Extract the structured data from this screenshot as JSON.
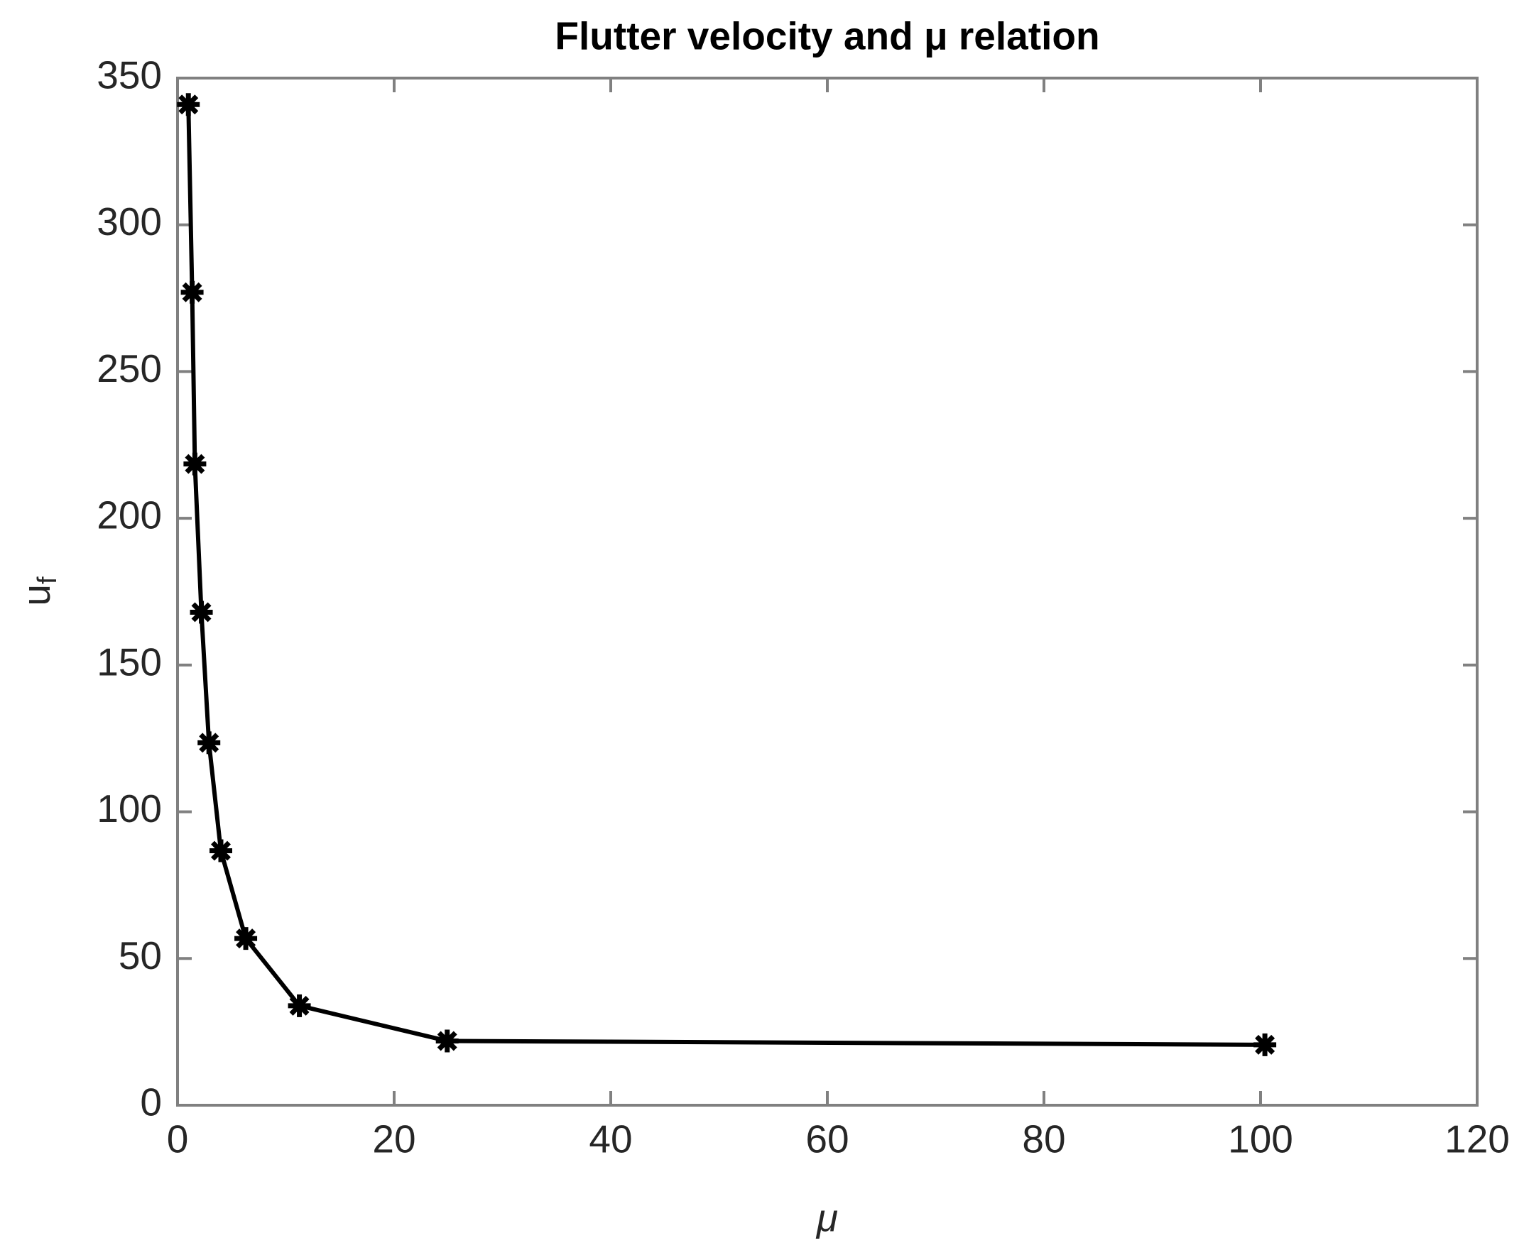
{
  "chart_data": {
    "type": "line",
    "title": "Flutter velocity and μ relation",
    "xlabel": "μ",
    "ylabel": {
      "base": "u",
      "sub": "f"
    },
    "x": [
      1.0,
      1.35,
      1.6,
      2.2,
      2.9,
      4.0,
      6.3,
      11.25,
      24.9,
      100.4
    ],
    "values": [
      341,
      277,
      218.5,
      168,
      123.5,
      86.7,
      56.8,
      33.9,
      21.9,
      20.6
    ],
    "color": "#000000",
    "marker": "asterisk",
    "xlim": [
      0,
      120
    ],
    "xticks": [
      0,
      20,
      40,
      60,
      80,
      100,
      120
    ],
    "ylim": [
      0,
      350
    ],
    "yticks": [
      0,
      50,
      100,
      150,
      200,
      250,
      300,
      350
    ]
  }
}
